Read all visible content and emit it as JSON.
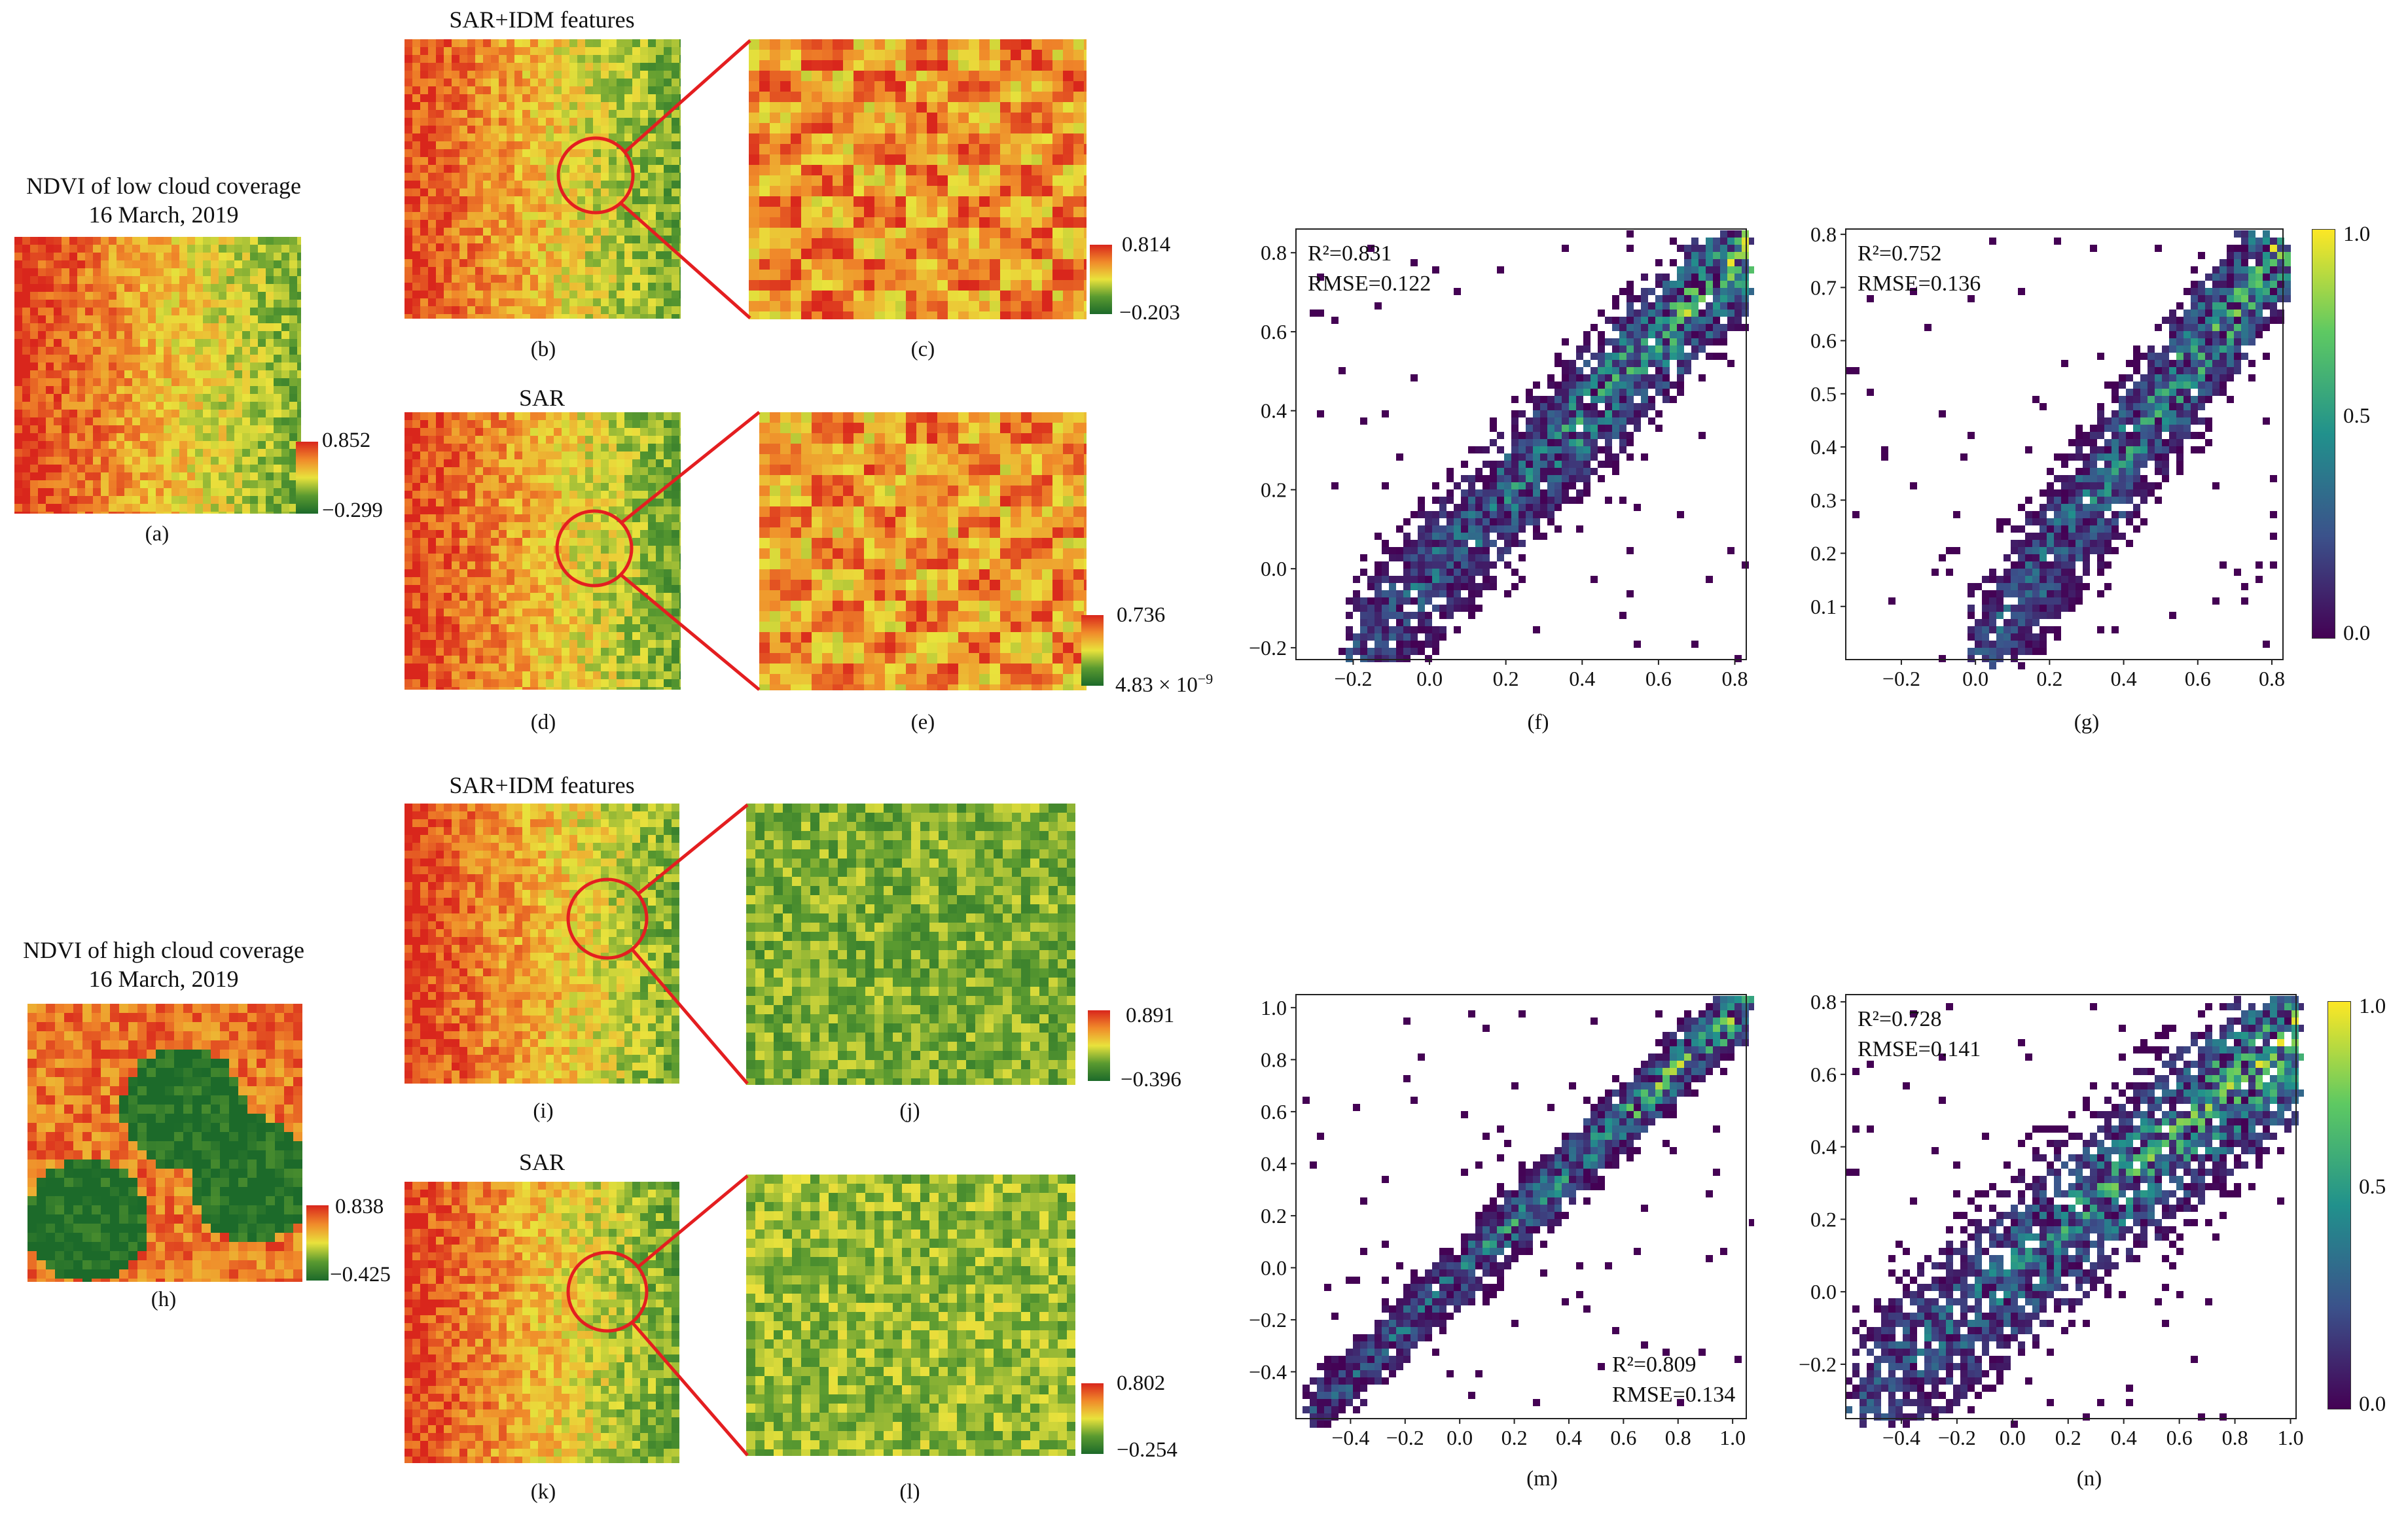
{
  "colors": {
    "ndvi_high": "#d9261c",
    "ndvi_mid_orange": "#f08a2a",
    "ndvi_mid_yellow": "#e9e23c",
    "ndvi_low": "#1c6a2a",
    "callout": "#e41e20",
    "viridis": [
      "#440154",
      "#3b528b",
      "#21918c",
      "#5ec962",
      "#fde725"
    ]
  },
  "titles": {
    "low_cloud": [
      "NDVI of low cloud coverage",
      "16 March, 2019"
    ],
    "high_cloud": [
      "NDVI of high cloud coverage",
      "16 March, 2019"
    ],
    "b": "SAR+IDM features",
    "d": "SAR",
    "i": "SAR+IDM features",
    "k": "SAR"
  },
  "labels": {
    "a": "(a)",
    "b": "(b)",
    "c": "(c)",
    "d": "(d)",
    "e": "(e)",
    "f": "(f)",
    "g": "(g)",
    "h": "(h)",
    "i": "(i)",
    "j": "(j)",
    "k": "(k)",
    "l": "(l)",
    "m": "(m)",
    "n": "(n)"
  },
  "colorbars": {
    "a": {
      "max": "0.852",
      "min": "−0.299"
    },
    "c": {
      "max": "0.814",
      "min": "−0.203"
    },
    "e": {
      "max": "0.736",
      "min": "4.83 × 10",
      "min_exp": "−9"
    },
    "h": {
      "max": "0.838",
      "min": "−0.425"
    },
    "j": {
      "max": "0.891",
      "min": "−0.396"
    },
    "l": {
      "max": "0.802",
      "min": "−0.254"
    },
    "density_top": {
      "max": "1.0",
      "mid": "0.5",
      "min": "0.0"
    },
    "density_bottom": {
      "max": "1.0",
      "mid": "0.5",
      "min": "0.0"
    }
  },
  "chart_data": [
    {
      "id": "f",
      "type": "heatmap",
      "title": "",
      "xlim": [
        -0.35,
        0.83
      ],
      "ylim": [
        -0.23,
        0.86
      ],
      "xticks": [
        -0.2,
        0.0,
        0.2,
        0.4,
        0.6,
        0.8
      ],
      "yticks": [
        -0.2,
        0.0,
        0.2,
        0.4,
        0.6,
        0.8
      ],
      "annotation": [
        "R²=0.831",
        "RMSE=0.122"
      ],
      "annotation_position": "top-left",
      "trend": {
        "slope": 1.0,
        "intercept": 0.0,
        "spread": 0.09
      }
    },
    {
      "id": "g",
      "type": "heatmap",
      "title": "",
      "xlim": [
        -0.35,
        0.83
      ],
      "ylim": [
        0.0,
        0.81
      ],
      "xticks": [
        -0.2,
        0.0,
        0.2,
        0.4,
        0.6,
        0.8
      ],
      "yticks": [
        0.1,
        0.2,
        0.3,
        0.4,
        0.5,
        0.6,
        0.7,
        0.8
      ],
      "annotation": [
        "R²=0.752",
        "RMSE=0.136"
      ],
      "annotation_position": "top-left",
      "trend": {
        "slope": 0.95,
        "intercept": 0.02,
        "spread": 0.07
      }
    },
    {
      "id": "m",
      "type": "heatmap",
      "title": "",
      "xlim": [
        -0.6,
        1.05
      ],
      "ylim": [
        -0.58,
        1.05
      ],
      "xticks": [
        -0.4,
        -0.2,
        0.0,
        0.2,
        0.4,
        0.6,
        0.8,
        1.0
      ],
      "yticks": [
        -0.4,
        -0.2,
        0.0,
        0.2,
        0.4,
        0.6,
        0.8,
        1.0
      ],
      "annotation": [
        "R²=0.809",
        "RMSE=0.134"
      ],
      "annotation_position": "bottom-right",
      "trend": {
        "slope": 1.0,
        "intercept": 0.0,
        "spread": 0.07
      }
    },
    {
      "id": "n",
      "type": "heatmap",
      "title": "",
      "xlim": [
        -0.6,
        1.02
      ],
      "ylim": [
        -0.35,
        0.82
      ],
      "xticks": [
        -0.4,
        -0.2,
        0.0,
        0.2,
        0.4,
        0.6,
        0.8,
        1.0
      ],
      "yticks": [
        -0.2,
        0.0,
        0.2,
        0.4,
        0.6,
        0.8
      ],
      "annotation": [
        "R²=0.728",
        "RMSE=0.141"
      ],
      "annotation_position": "top-left",
      "trend": {
        "slope": 0.65,
        "intercept": 0.07,
        "spread": 0.13
      }
    }
  ]
}
